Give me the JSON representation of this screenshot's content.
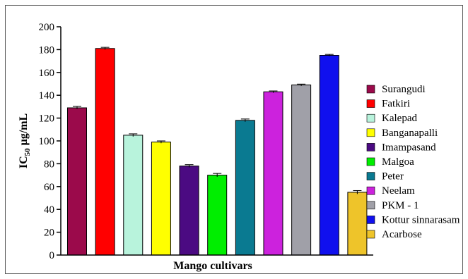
{
  "chart_data": {
    "type": "bar",
    "title": "",
    "xlabel": "Mango cultivars",
    "ylabel": {
      "main": "IC",
      "sub": "50",
      "rest": " μg/mL"
    },
    "ylim": [
      0,
      200
    ],
    "yticks": [
      0,
      20,
      40,
      60,
      80,
      100,
      120,
      140,
      160,
      180,
      200
    ],
    "grid": false,
    "legend_position": "right",
    "categories": [
      "Surangudi",
      "Fatkiri",
      "Kalepad",
      "Banganapalli",
      "Imampasand",
      "Malgoa",
      "Peter",
      "Neelam",
      "PKM - 1",
      "Kottur sinnarasam",
      "Acarbose"
    ],
    "values": [
      129,
      181,
      105,
      99,
      78,
      70,
      118,
      143,
      149,
      175,
      55
    ],
    "errors": [
      1.2,
      1,
      1.2,
      1,
      1.2,
      1.5,
      1.2,
      0.8,
      0.8,
      0.8,
      1.5
    ],
    "colors": [
      "#9b0a4b",
      "#ff0000",
      "#b8f3dc",
      "#ffff00",
      "#4b0a82",
      "#00ee00",
      "#0a7a91",
      "#cc22dd",
      "#a0a0a8",
      "#1010ee",
      "#eec42a"
    ]
  }
}
